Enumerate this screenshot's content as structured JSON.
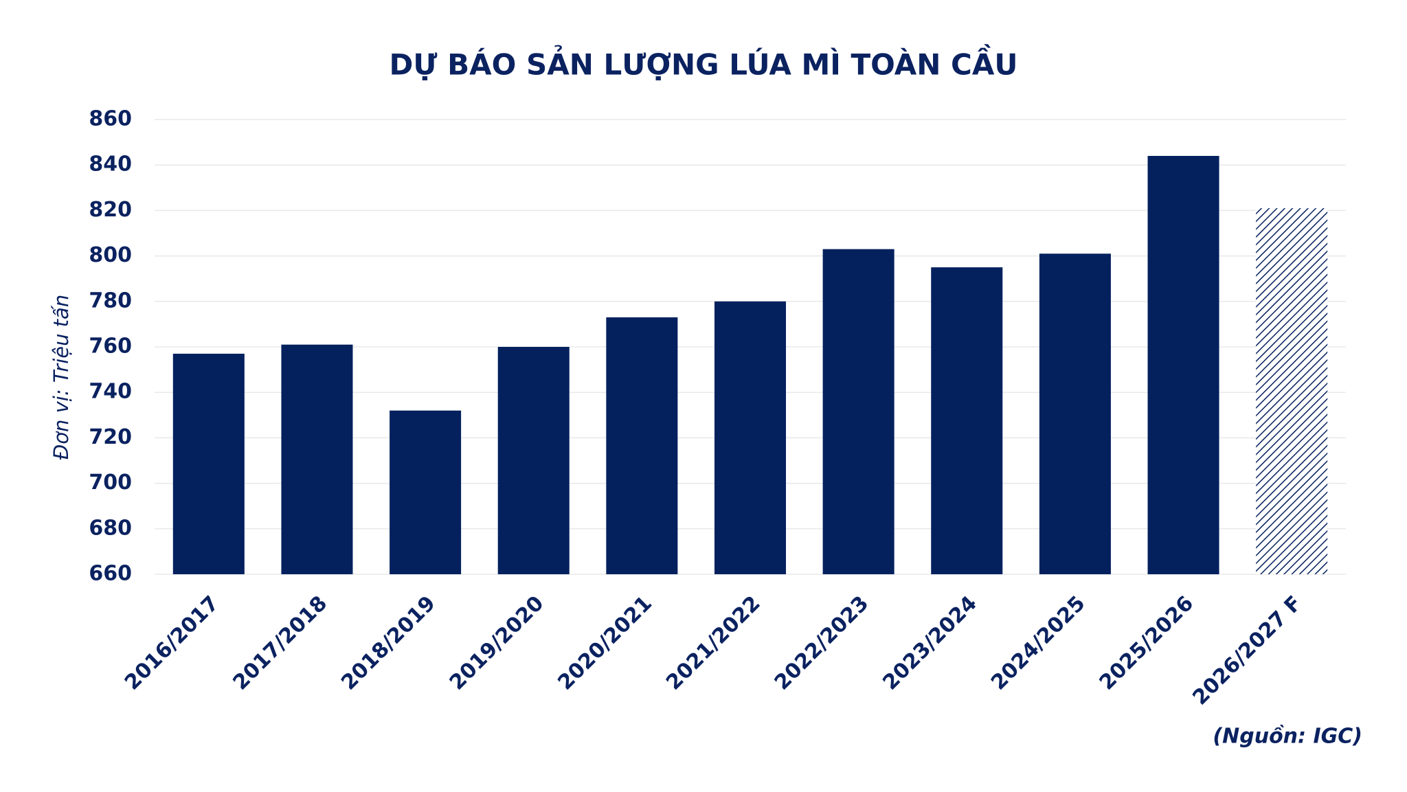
{
  "chart_data": {
    "type": "bar",
    "title": "DỰ BÁO SẢN LƯỢNG LÚA MÌ TOÀN CẦU",
    "y_label": "Đơn vị: Triệu tấn",
    "source": "(Nguồn: IGC)",
    "categories": [
      "2016/2017",
      "2017/2018",
      "2018/2019",
      "2019/2020",
      "2020/2021",
      "2021/2022",
      "2022/2023",
      "2023/2024",
      "2024/2025",
      "2025/2026",
      "2026/2027 F"
    ],
    "values": [
      757,
      761,
      732,
      760,
      773,
      780,
      803,
      795,
      801,
      844,
      821
    ],
    "hatch": [
      false,
      false,
      false,
      false,
      false,
      false,
      false,
      false,
      false,
      false,
      true
    ],
    "color": "#04215e",
    "ylim": [
      660,
      860
    ],
    "yticks": [
      660,
      680,
      700,
      720,
      740,
      760,
      780,
      800,
      820,
      840,
      860
    ],
    "grid": true
  }
}
